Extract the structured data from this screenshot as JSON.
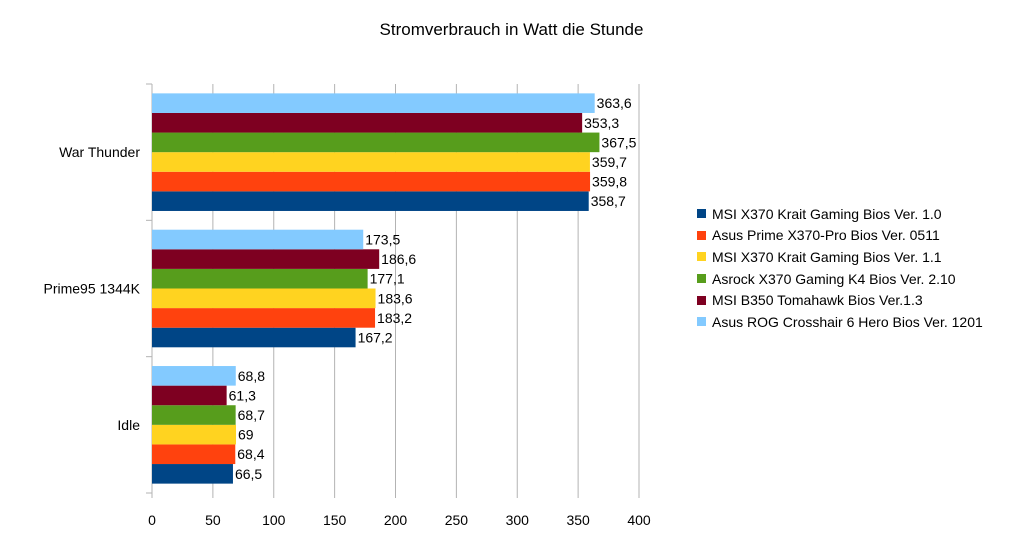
{
  "chart_data": {
    "type": "bar",
    "orientation": "horizontal",
    "title": "Stromverbrauch in Watt die Stunde",
    "xlabel": "",
    "ylabel": "",
    "xlim": [
      0,
      400
    ],
    "x_ticks": [
      0,
      50,
      100,
      150,
      200,
      250,
      300,
      350,
      400
    ],
    "grid": "vertical",
    "legend_position": "right",
    "categories": [
      "War Thunder",
      "Prime95 1344K",
      "Idle"
    ],
    "series": [
      {
        "name": "MSI X370 Krait Gaming Bios Ver. 1.0",
        "color": "#004586",
        "values": [
          358.7,
          167.2,
          66.5
        ],
        "labels": [
          "358,7",
          "167,2",
          "66,5"
        ]
      },
      {
        "name": "Asus Prime X370-Pro Bios Ver. 0511",
        "color": "#ff420e",
        "values": [
          359.8,
          183.2,
          68.4
        ],
        "labels": [
          "359,8",
          "183,2",
          "68,4"
        ]
      },
      {
        "name": "MSI X370 Krait Gaming Bios Ver. 1.1",
        "color": "#ffd320",
        "values": [
          359.7,
          183.6,
          69
        ],
        "labels": [
          "359,7",
          "183,6",
          "69"
        ]
      },
      {
        "name": "Asrock X370 Gaming K4 Bios Ver. 2.10",
        "color": "#579d1c",
        "values": [
          367.5,
          177.1,
          68.7
        ],
        "labels": [
          "367,5",
          "177,1",
          "68,7"
        ]
      },
      {
        "name": "MSI B350 Tomahawk Bios Ver.1.3",
        "color": "#7e0021",
        "values": [
          353.3,
          186.6,
          61.3
        ],
        "labels": [
          "353,3",
          "186,6",
          "61,3"
        ]
      },
      {
        "name": "Asus ROG Crosshair 6 Hero Bios Ver. 1201",
        "color": "#83caff",
        "values": [
          363.6,
          173.5,
          68.8
        ],
        "labels": [
          "363,6",
          "173,5",
          "68,8"
        ]
      }
    ]
  }
}
